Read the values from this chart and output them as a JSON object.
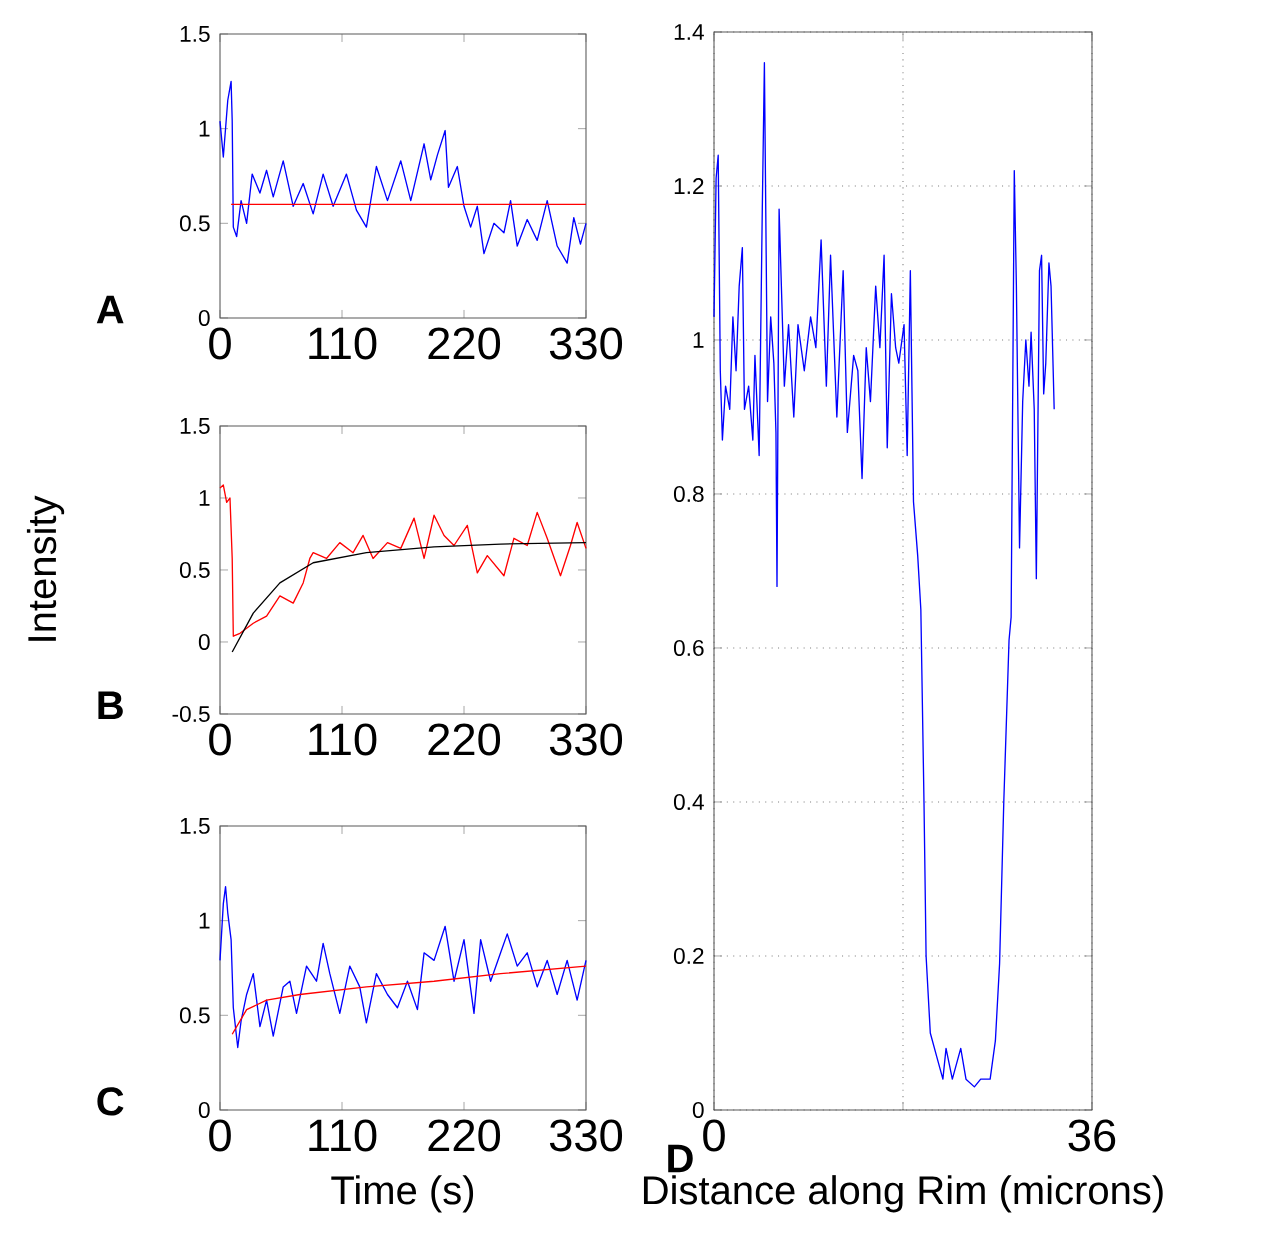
{
  "chart_data": [
    {
      "type": "line",
      "annotations": [
        "A"
      ],
      "xlim": [
        0,
        330
      ],
      "ylim": [
        0,
        1.5
      ],
      "xticks": [
        0,
        110,
        220,
        330
      ],
      "yticks": [
        0,
        0.5,
        1,
        1.5
      ],
      "series": [
        {
          "color": "#0000ff",
          "x": [
            0,
            3,
            7,
            10,
            11,
            12,
            15,
            19,
            24,
            29,
            36,
            42,
            48,
            57,
            66,
            75,
            84,
            93,
            102,
            114,
            123,
            132,
            141,
            151,
            163,
            172,
            184,
            190,
            196,
            203,
            206,
            214,
            220,
            226,
            232,
            238,
            247,
            256,
            262,
            268,
            277,
            286,
            295,
            304,
            313,
            319,
            325,
            330
          ],
          "values": [
            1.04,
            0.85,
            1.15,
            1.25,
            1.04,
            0.48,
            0.43,
            0.62,
            0.5,
            0.76,
            0.66,
            0.78,
            0.64,
            0.83,
            0.59,
            0.71,
            0.55,
            0.76,
            0.59,
            0.76,
            0.57,
            0.48,
            0.8,
            0.62,
            0.83,
            0.62,
            0.92,
            0.73,
            0.86,
            0.99,
            0.69,
            0.8,
            0.59,
            0.48,
            0.59,
            0.34,
            0.5,
            0.45,
            0.62,
            0.38,
            0.52,
            0.41,
            0.62,
            0.38,
            0.29,
            0.53,
            0.39,
            0.5
          ]
        },
        {
          "color": "#ff0000",
          "x": [
            10,
            330
          ],
          "values": [
            0.6,
            0.6
          ]
        }
      ]
    },
    {
      "type": "line",
      "annotations": [
        "B"
      ],
      "ylabel": "Intensity",
      "xlim": [
        0,
        330
      ],
      "ylim": [
        -0.5,
        1.5
      ],
      "xticks": [
        0,
        110,
        220,
        330
      ],
      "yticks": [
        -0.5,
        0,
        0.5,
        1,
        1.5
      ],
      "series": [
        {
          "color": "#ff0000",
          "x": [
            0,
            3,
            6,
            9,
            11,
            12,
            18,
            30,
            42,
            54,
            66,
            75,
            81,
            84,
            96,
            108,
            120,
            129,
            138,
            151,
            163,
            175,
            184,
            193,
            202,
            211,
            223,
            232,
            241,
            256,
            265,
            277,
            286,
            295,
            307,
            316,
            322,
            330
          ],
          "values": [
            1.07,
            1.09,
            0.97,
            1.0,
            0.58,
            0.04,
            0.06,
            0.13,
            0.18,
            0.32,
            0.27,
            0.41,
            0.58,
            0.62,
            0.58,
            0.69,
            0.62,
            0.74,
            0.58,
            0.69,
            0.65,
            0.86,
            0.58,
            0.88,
            0.74,
            0.67,
            0.81,
            0.48,
            0.6,
            0.46,
            0.72,
            0.67,
            0.9,
            0.72,
            0.46,
            0.67,
            0.83,
            0.65
          ]
        },
        {
          "color": "#000000",
          "x": [
            11,
            30,
            54,
            84,
            132,
            193,
            253,
            330
          ],
          "values": [
            -0.07,
            0.2,
            0.41,
            0.55,
            0.62,
            0.66,
            0.68,
            0.69
          ]
        }
      ]
    },
    {
      "type": "line",
      "annotations": [
        "C"
      ],
      "xlabel": "Time (s)",
      "xlim": [
        0,
        330
      ],
      "ylim": [
        0,
        1.5
      ],
      "xticks": [
        0,
        110,
        220,
        330
      ],
      "yticks": [
        0,
        0.5,
        1,
        1.5
      ],
      "series": [
        {
          "color": "#0000ff",
          "x": [
            0,
            3,
            5,
            7,
            10,
            12,
            16,
            19,
            24,
            30,
            36,
            42,
            48,
            57,
            63,
            69,
            78,
            87,
            93,
            99,
            108,
            117,
            126,
            132,
            141,
            151,
            160,
            169,
            178,
            184,
            193,
            203,
            211,
            220,
            229,
            235,
            244,
            253,
            259,
            268,
            277,
            286,
            295,
            304,
            313,
            322,
            330
          ],
          "values": [
            0.79,
            1.09,
            1.18,
            1.04,
            0.9,
            0.54,
            0.33,
            0.47,
            0.61,
            0.72,
            0.44,
            0.58,
            0.39,
            0.65,
            0.68,
            0.51,
            0.76,
            0.68,
            0.88,
            0.72,
            0.51,
            0.76,
            0.65,
            0.46,
            0.72,
            0.61,
            0.54,
            0.68,
            0.53,
            0.83,
            0.79,
            0.97,
            0.68,
            0.9,
            0.51,
            0.9,
            0.68,
            0.83,
            0.93,
            0.76,
            0.83,
            0.65,
            0.79,
            0.61,
            0.79,
            0.58,
            0.79
          ]
        },
        {
          "color": "#ff0000",
          "x": [
            11,
            24,
            42,
            72,
            132,
            193,
            253,
            330
          ],
          "values": [
            0.4,
            0.53,
            0.58,
            0.61,
            0.65,
            0.68,
            0.72,
            0.76
          ]
        }
      ]
    },
    {
      "type": "line",
      "annotations": [
        "D"
      ],
      "xlabel": "Distance along Rim (microns)",
      "xlim": [
        0,
        36
      ],
      "ylim": [
        0,
        1.4
      ],
      "xticks": [
        0,
        {
          "value": 18,
          "label": null
        },
        36
      ],
      "yticks": [
        0,
        0.2,
        0.4,
        0.6,
        0.8,
        1,
        1.2,
        1.4
      ],
      "grid": true,
      "series": [
        {
          "color": "#0000ff",
          "x": [
            0,
            0.2,
            0.4,
            0.6,
            0.8,
            1.1,
            1.5,
            1.8,
            2.1,
            2.4,
            2.7,
            2.9,
            3.3,
            3.7,
            3.9,
            4.3,
            4.6,
            4.8,
            5.1,
            5.4,
            5.7,
            5.9,
            6.0,
            6.2,
            6.7,
            7.1,
            7.6,
            8.0,
            8.6,
            9.2,
            9.7,
            10.2,
            10.7,
            11.1,
            11.7,
            12.3,
            12.7,
            13.3,
            13.7,
            14.1,
            14.5,
            14.9,
            15.4,
            15.8,
            16.2,
            16.5,
            16.9,
            17.3,
            17.6,
            18.1,
            18.4,
            18.7,
            19.0,
            19.4,
            19.7,
            20.0,
            20.2,
            20.6,
            21.2,
            21.8,
            22.1,
            22.7,
            23.5,
            24.0,
            24.8,
            25.4,
            26.3,
            26.8,
            27.2,
            27.6,
            28.1,
            28.3,
            28.6,
            28.8,
            29.1,
            29.4,
            29.7,
            30.0,
            30.2,
            30.5,
            30.7,
            31.0,
            31.2,
            31.4,
            31.6,
            31.9,
            32.1,
            32.4
          ],
          "values": [
            1.03,
            1.21,
            1.24,
            0.96,
            0.87,
            0.94,
            0.91,
            1.03,
            0.96,
            1.07,
            1.12,
            0.91,
            0.94,
            0.87,
            0.98,
            0.85,
            1.17,
            1.36,
            0.92,
            1.03,
            0.97,
            0.88,
            0.68,
            1.17,
            0.94,
            1.02,
            0.9,
            1.02,
            0.96,
            1.03,
            0.99,
            1.13,
            0.94,
            1.11,
            0.9,
            1.09,
            0.88,
            0.98,
            0.96,
            0.82,
            0.99,
            0.92,
            1.07,
            0.99,
            1.11,
            0.86,
            1.06,
            0.99,
            0.97,
            1.02,
            0.85,
            1.09,
            0.79,
            0.72,
            0.65,
            0.4,
            0.2,
            0.1,
            0.07,
            0.04,
            0.08,
            0.04,
            0.08,
            0.04,
            0.03,
            0.04,
            0.04,
            0.09,
            0.19,
            0.4,
            0.61,
            0.64,
            1.22,
            1.07,
            0.73,
            0.92,
            1.0,
            0.94,
            1.01,
            0.91,
            0.69,
            1.09,
            1.11,
            0.93,
            0.97,
            1.1,
            1.07,
            0.91
          ]
        }
      ]
    }
  ]
}
